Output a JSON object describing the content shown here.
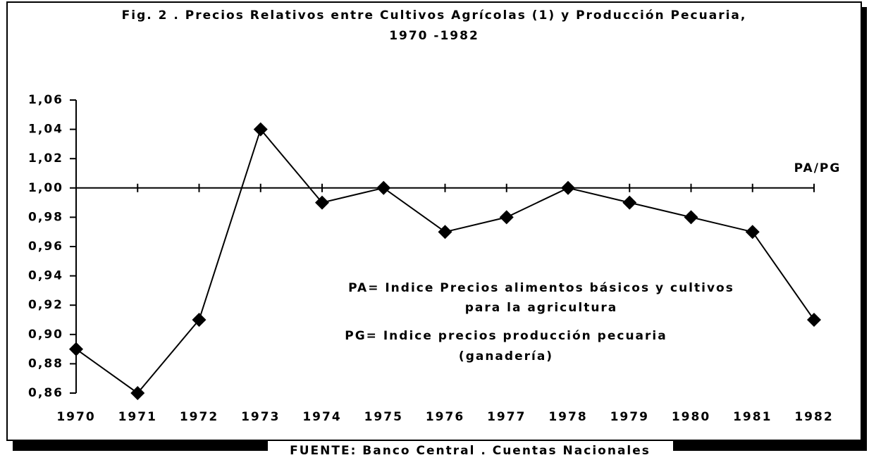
{
  "chart_data": {
    "type": "line",
    "title": [
      "Fig. 2 . Precios Relativos entre Cultivos Agrícolas (1) y Producción Pecuaria,",
      "1970 -1982"
    ],
    "categories": [
      "1970",
      "1971",
      "1972",
      "1973",
      "1974",
      "1975",
      "1976",
      "1977",
      "1978",
      "1979",
      "1980",
      "1981",
      "1982"
    ],
    "series": [
      {
        "name": "PA/PG",
        "color": "#000000",
        "values": [
          0.89,
          0.86,
          0.91,
          1.04,
          0.99,
          1.0,
          0.97,
          0.98,
          1.0,
          0.99,
          0.98,
          0.97,
          0.91
        ]
      }
    ],
    "ylim": [
      0.86,
      1.06
    ],
    "yticks": [
      {
        "value": 0.86,
        "label": "0,86"
      },
      {
        "value": 0.88,
        "label": "0,88"
      },
      {
        "value": 0.9,
        "label": "0,90"
      },
      {
        "value": 0.92,
        "label": "0,92"
      },
      {
        "value": 0.94,
        "label": "0,94"
      },
      {
        "value": 0.96,
        "label": "0,96"
      },
      {
        "value": 0.98,
        "label": "0,98"
      },
      {
        "value": 1.0,
        "label": "1,00"
      },
      {
        "value": 1.02,
        "label": "1,02"
      },
      {
        "value": 1.04,
        "label": "1,04"
      },
      {
        "value": 1.06,
        "label": "1,06"
      }
    ],
    "x_axis_crosses": 1.0,
    "annotations": [
      "PA= Indice Precios alimentos básicos y cultivos",
      "para la agricultura",
      "PG= Indice precios producción pecuaria",
      "(ganadería)"
    ],
    "source": "FUENTE: Banco Central . Cuentas Nacionales"
  }
}
